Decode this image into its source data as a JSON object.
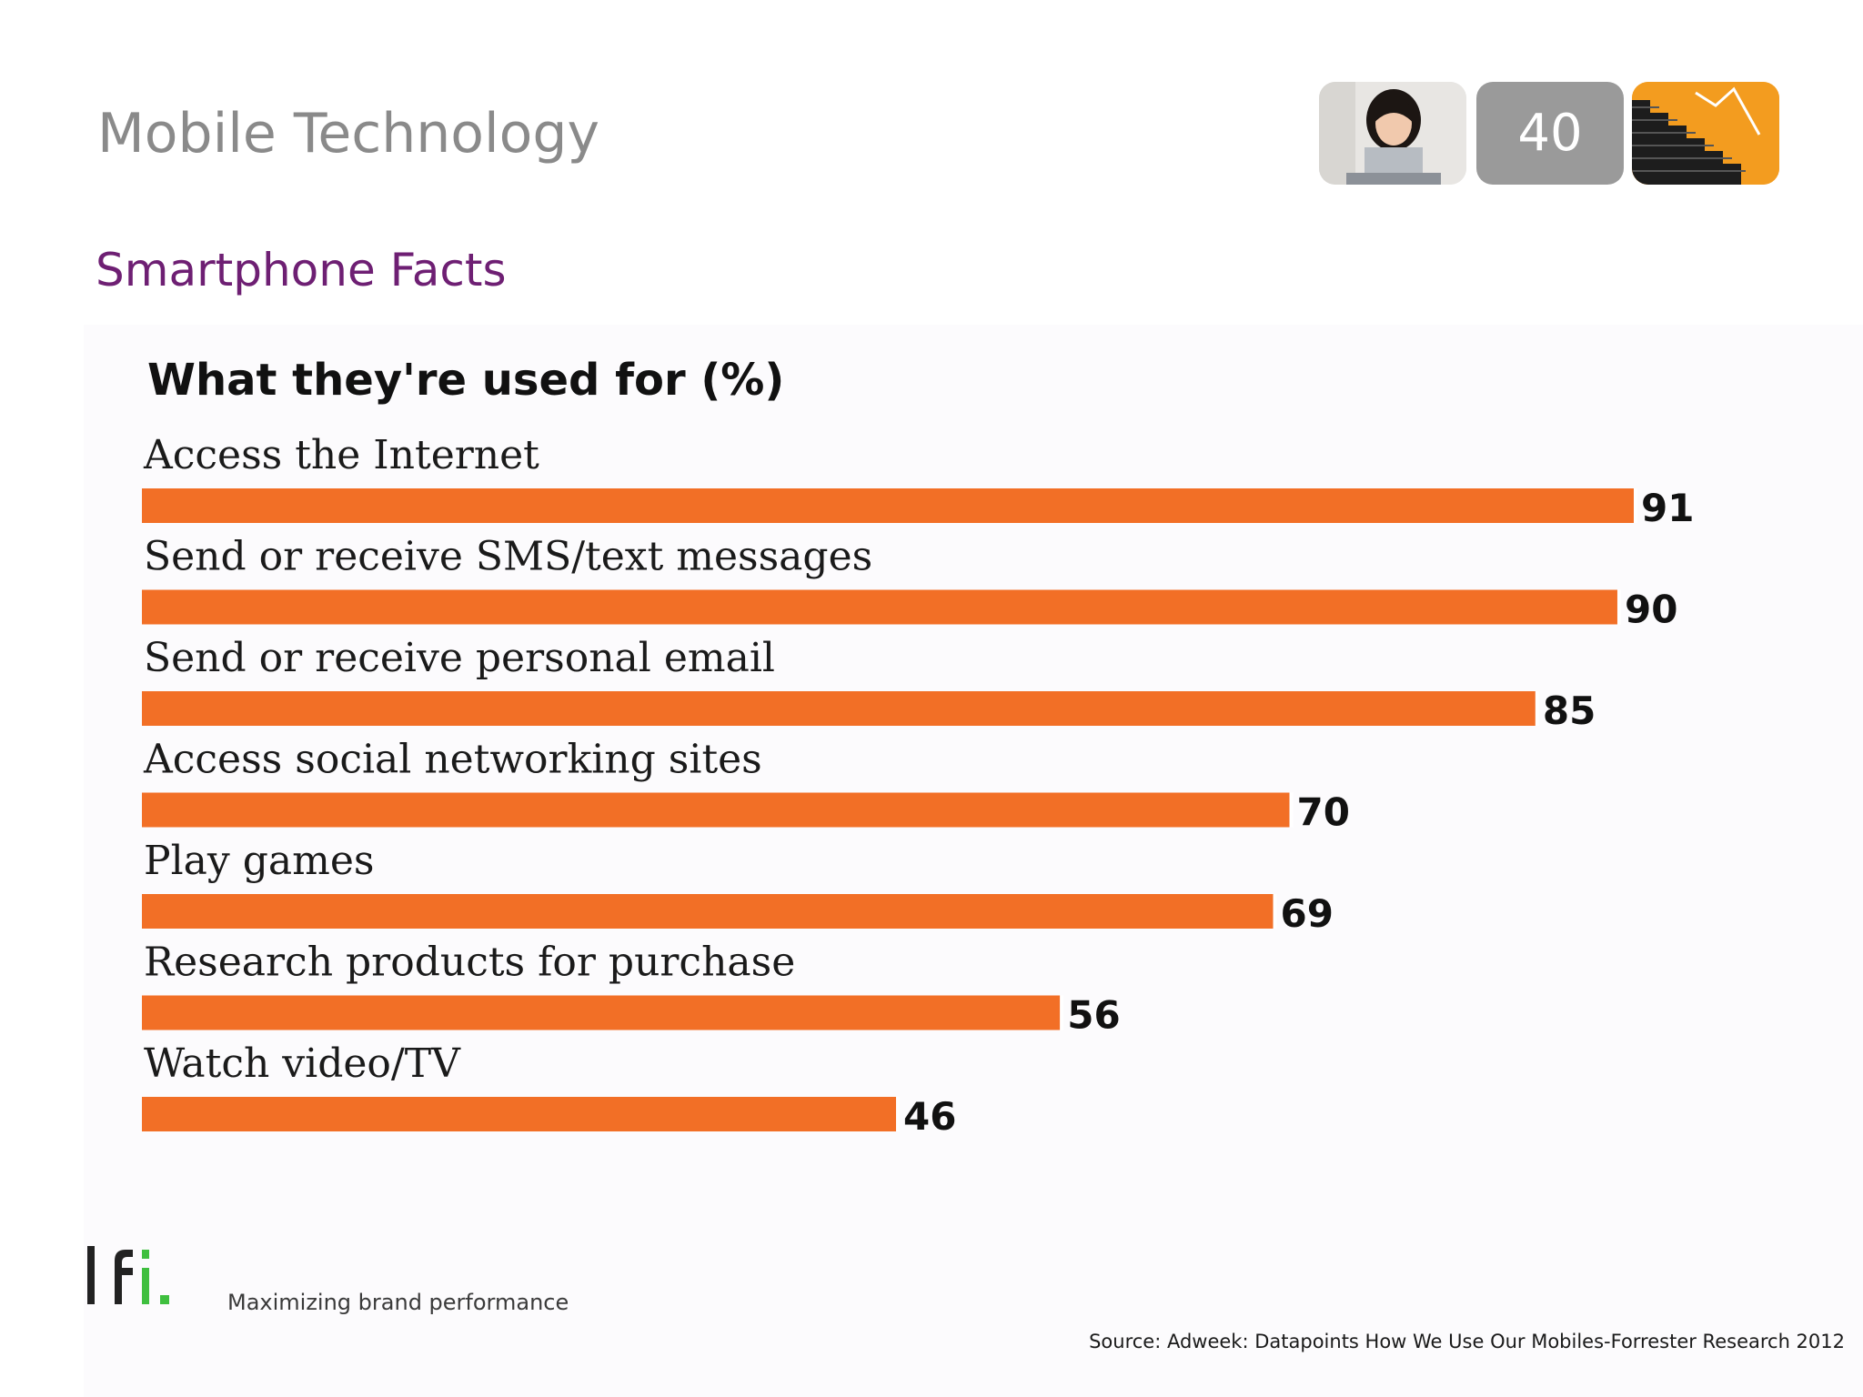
{
  "slide": {
    "title": "Mobile Technology",
    "subtitle": "Smartphone Facts",
    "page_number": "40",
    "tagline": "Maximizing brand performance",
    "source": "Source: Adweek: Datapoints How We Use Our Mobiles-Forrester Research 2012",
    "logo": {
      "text": "lfi",
      "icon": "lfi-logo"
    }
  },
  "colors": {
    "bar": "#f26f26",
    "subtitle": "#6e1f73",
    "title": "#8a8a8a",
    "tile_gray": "#9a9a9a",
    "tile_orange": "#f39c1f",
    "logo_green": "#3fbf3f"
  },
  "header_tiles": [
    {
      "icon": "person-with-laptop-icon"
    },
    {
      "icon": "page-number-tile"
    },
    {
      "icon": "stairs-chart-icon"
    }
  ],
  "chart_data": {
    "type": "bar",
    "orientation": "horizontal",
    "title": "What they're used for (%)",
    "categories": [
      "Access the Internet",
      "Send or receive SMS/text messages",
      "Send or receive personal email",
      "Access social networking sites",
      "Play games",
      "Research products for purchase",
      "Watch video/TV"
    ],
    "values": [
      91,
      90,
      85,
      70,
      69,
      56,
      46
    ],
    "xlabel": "",
    "ylabel": "",
    "xlim": [
      0,
      100
    ],
    "grid": false,
    "legend": "none"
  }
}
